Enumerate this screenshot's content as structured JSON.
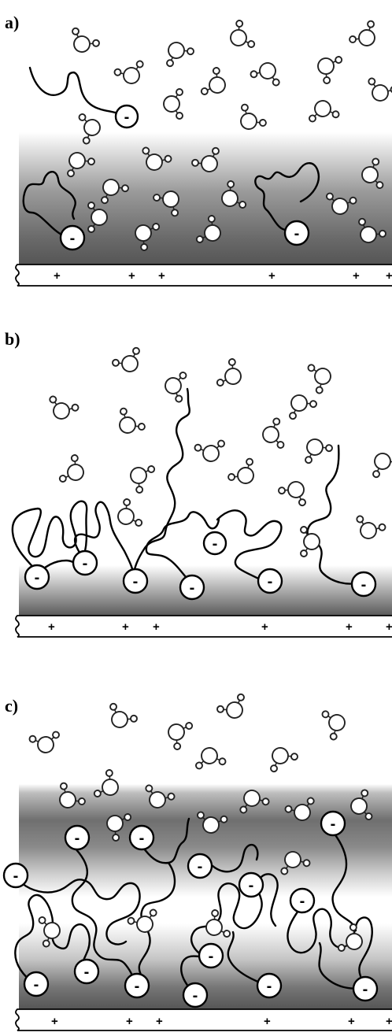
{
  "panels": [
    {
      "label": "a)",
      "substrate_signs": [
        "+",
        "+",
        "+",
        "+",
        "+",
        "+"
      ],
      "ion_sign": "-"
    },
    {
      "label": "b)",
      "substrate_signs": [
        "+",
        "+",
        "+",
        "+",
        "+",
        "+"
      ],
      "ion_sign": "-"
    },
    {
      "label": "c)",
      "substrate_signs": [
        "+",
        "+",
        "+",
        "+",
        "+",
        "+"
      ],
      "ion_sign": "-"
    }
  ],
  "colors": {
    "layer_dark": "#555555",
    "layer_light": "#ffffff",
    "ink": "#000000"
  },
  "icons": {
    "water": "water-molecule-icon",
    "ion": "negative-ion-icon"
  }
}
